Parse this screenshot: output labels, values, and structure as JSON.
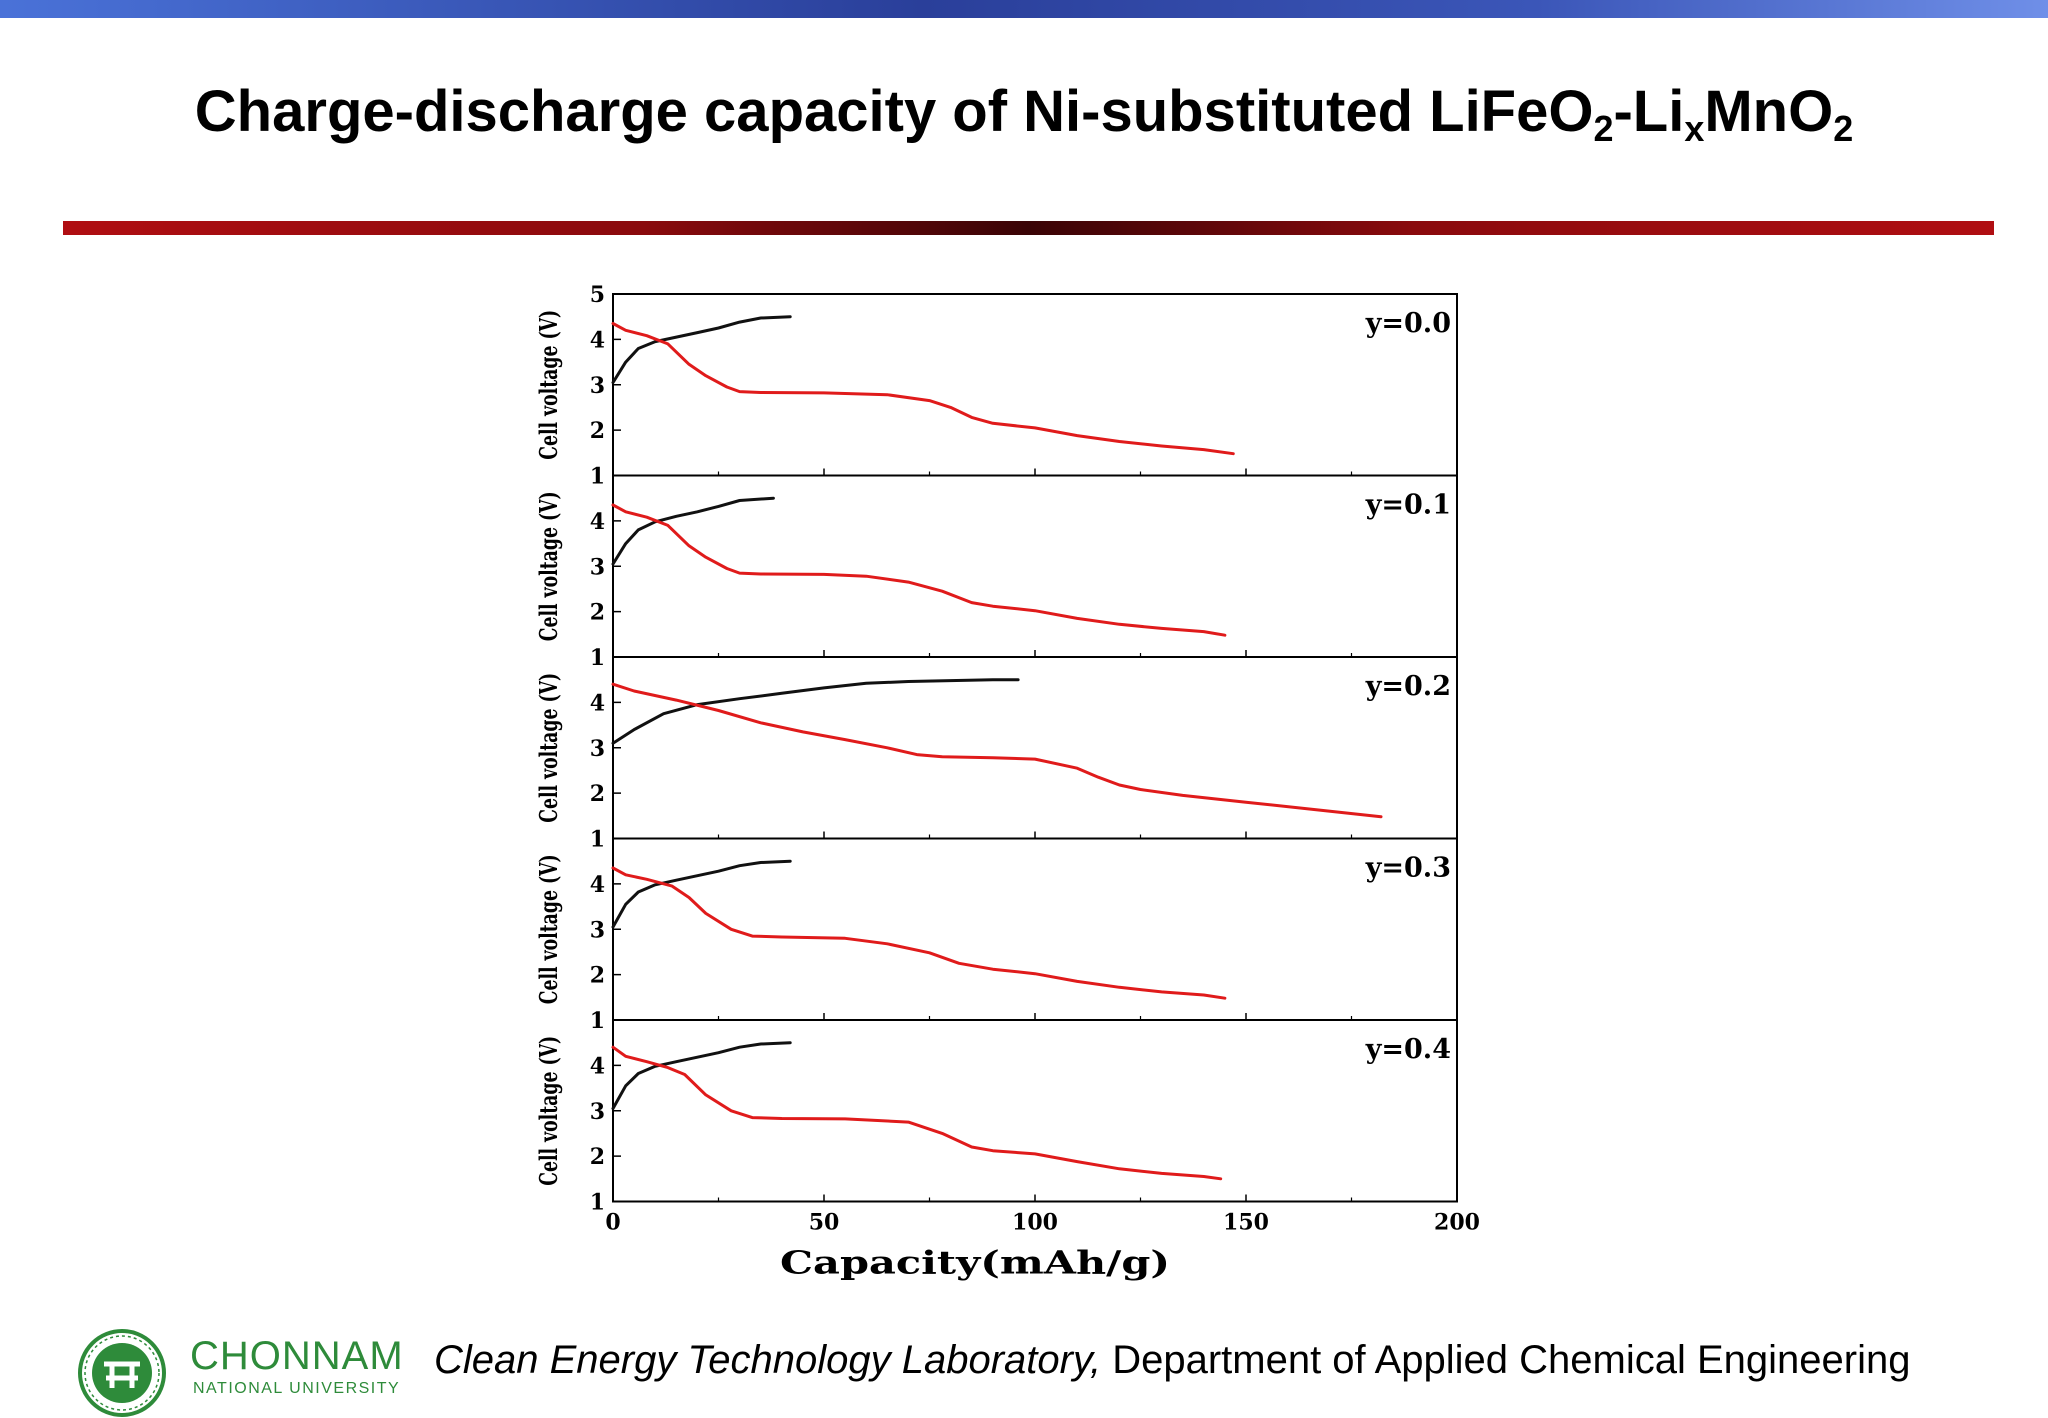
{
  "slide": {
    "title_main": "Charge-discharge capacity of Ni-substituted LiFeO",
    "title_sub1": "2",
    "title_mid": "-Li",
    "title_sub2": "x",
    "title_mid2": "MnO",
    "title_sub3": "2",
    "footer_lab": "Clean Energy Technology Laboratory,",
    "footer_dept": " Department of Applied Chemical Engineering",
    "logo_name": "CHONNAM",
    "logo_sub": "NATIONAL UNIVERSITY"
  },
  "colors": {
    "charge": "#111111",
    "discharge": "#e01b1b",
    "logo_green": "#2e8b3a"
  },
  "chart_data": {
    "type": "line",
    "xlabel": "Capacity(mAh/g)",
    "xlim": [
      0,
      200
    ],
    "xticks": [
      0,
      50,
      100,
      150,
      200
    ],
    "ylim": [
      1,
      5
    ],
    "panels": [
      {
        "label": "y=0.0",
        "ylabel": "Cell voltage (V)",
        "yticks": [
          1,
          2,
          3,
          4,
          5
        ],
        "series": [
          {
            "role": "charge",
            "x": [
              0,
              3,
              6,
              10,
              15,
              20,
              25,
              30,
              35,
              42
            ],
            "y": [
              3.05,
              3.5,
              3.8,
              3.95,
              4.05,
              4.15,
              4.25,
              4.38,
              4.47,
              4.5
            ]
          },
          {
            "role": "discharge",
            "x": [
              0,
              3,
              8,
              13,
              18,
              22,
              27,
              30,
              35,
              50,
              65,
              75,
              80,
              85,
              90,
              100,
              110,
              120,
              130,
              140,
              147
            ],
            "y": [
              4.35,
              4.2,
              4.08,
              3.9,
              3.45,
              3.2,
              2.95,
              2.85,
              2.83,
              2.82,
              2.78,
              2.65,
              2.5,
              2.28,
              2.15,
              2.05,
              1.88,
              1.75,
              1.65,
              1.57,
              1.48
            ]
          }
        ]
      },
      {
        "label": "y=0.1",
        "ylabel": "Cell voltage (V)",
        "yticks": [
          1,
          2,
          3,
          4
        ],
        "series": [
          {
            "role": "charge",
            "x": [
              0,
              3,
              6,
              10,
              15,
              20,
              25,
              30,
              38
            ],
            "y": [
              3.05,
              3.5,
              3.8,
              3.98,
              4.1,
              4.2,
              4.32,
              4.45,
              4.5
            ]
          },
          {
            "role": "discharge",
            "x": [
              0,
              3,
              8,
              13,
              18,
              22,
              27,
              30,
              35,
              50,
              60,
              70,
              78,
              85,
              90,
              100,
              110,
              120,
              130,
              140,
              145
            ],
            "y": [
              4.35,
              4.2,
              4.08,
              3.9,
              3.45,
              3.2,
              2.95,
              2.85,
              2.83,
              2.82,
              2.78,
              2.65,
              2.45,
              2.2,
              2.12,
              2.02,
              1.85,
              1.72,
              1.63,
              1.56,
              1.48
            ]
          }
        ]
      },
      {
        "label": "y=0.2",
        "ylabel": "Cell voltage (V)",
        "yticks": [
          1,
          2,
          3,
          4
        ],
        "series": [
          {
            "role": "charge",
            "x": [
              0,
              5,
              12,
              20,
              30,
              40,
              50,
              60,
              70,
              80,
              90,
              96
            ],
            "y": [
              3.1,
              3.4,
              3.75,
              3.95,
              4.08,
              4.2,
              4.32,
              4.42,
              4.46,
              4.48,
              4.5,
              4.5
            ]
          },
          {
            "role": "discharge",
            "x": [
              0,
              5,
              15,
              25,
              35,
              45,
              55,
              65,
              72,
              78,
              90,
              100,
              110,
              115,
              120,
              125,
              135,
              150,
              165,
              182
            ],
            "y": [
              4.4,
              4.25,
              4.05,
              3.82,
              3.55,
              3.35,
              3.18,
              3.0,
              2.85,
              2.8,
              2.78,
              2.75,
              2.55,
              2.35,
              2.18,
              2.08,
              1.95,
              1.8,
              1.65,
              1.48
            ]
          }
        ]
      },
      {
        "label": "y=0.3",
        "ylabel": "Cell voltage (V)",
        "yticks": [
          1,
          2,
          3,
          4
        ],
        "series": [
          {
            "role": "charge",
            "x": [
              0,
              3,
              6,
              10,
              15,
              20,
              25,
              30,
              35,
              42
            ],
            "y": [
              3.05,
              3.55,
              3.82,
              3.98,
              4.08,
              4.18,
              4.28,
              4.4,
              4.47,
              4.5
            ]
          },
          {
            "role": "discharge",
            "x": [
              0,
              3,
              8,
              14,
              18,
              22,
              28,
              33,
              40,
              55,
              65,
              75,
              82,
              90,
              100,
              110,
              120,
              130,
              140,
              145
            ],
            "y": [
              4.35,
              4.2,
              4.1,
              3.95,
              3.7,
              3.35,
              3.0,
              2.85,
              2.83,
              2.8,
              2.68,
              2.48,
              2.25,
              2.12,
              2.02,
              1.85,
              1.72,
              1.62,
              1.55,
              1.48
            ]
          }
        ]
      },
      {
        "label": "y=0.4",
        "ylabel": "Cell voltage (V)",
        "yticks": [
          1,
          2,
          3,
          4
        ],
        "series": [
          {
            "role": "charge",
            "x": [
              0,
              3,
              6,
              10,
              15,
              20,
              25,
              30,
              35,
              42
            ],
            "y": [
              3.05,
              3.55,
              3.82,
              3.98,
              4.08,
              4.18,
              4.28,
              4.4,
              4.47,
              4.5
            ]
          },
          {
            "role": "discharge",
            "x": [
              0,
              3,
              8,
              13,
              17,
              22,
              28,
              33,
              40,
              55,
              70,
              78,
              85,
              90,
              100,
              110,
              120,
              130,
              140,
              144
            ],
            "y": [
              4.4,
              4.2,
              4.08,
              3.95,
              3.8,
              3.35,
              3.0,
              2.85,
              2.83,
              2.82,
              2.75,
              2.5,
              2.2,
              2.12,
              2.05,
              1.88,
              1.72,
              1.62,
              1.55,
              1.5
            ]
          }
        ]
      }
    ]
  }
}
